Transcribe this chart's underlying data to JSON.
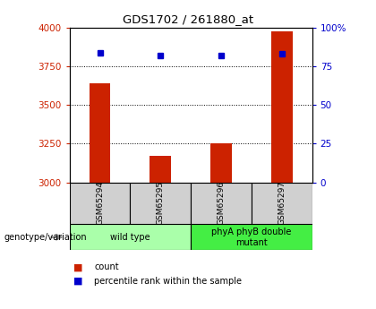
{
  "title": "GDS1702 / 261880_at",
  "samples": [
    "GSM65294",
    "GSM65295",
    "GSM65296",
    "GSM65297"
  ],
  "counts": [
    3640,
    3170,
    3255,
    3980
  ],
  "percentiles": [
    84,
    82,
    82,
    83
  ],
  "ylim_left": [
    3000,
    4000
  ],
  "ylim_right": [
    0,
    100
  ],
  "yticks_left": [
    3000,
    3250,
    3500,
    3750,
    4000
  ],
  "yticks_right": [
    0,
    25,
    50,
    75,
    100
  ],
  "ytick_labels_right": [
    "0",
    "25",
    "50",
    "75",
    "100%"
  ],
  "groups": [
    {
      "label": "wild type",
      "samples": [
        0,
        1
      ],
      "color": "#aaffaa"
    },
    {
      "label": "phyA phyB double\nmutant",
      "samples": [
        2,
        3
      ],
      "color": "#44ee44"
    }
  ],
  "bar_color": "#cc2200",
  "dot_color": "#0000cc",
  "bar_width": 0.35,
  "bg_color": "#d0d0d0",
  "plot_bg": "#ffffff",
  "legend_count_color": "#cc2200",
  "legend_pct_color": "#0000cc",
  "genotype_label": "genotype/variation",
  "legend_count": "count",
  "legend_pct": "percentile rank within the sample"
}
